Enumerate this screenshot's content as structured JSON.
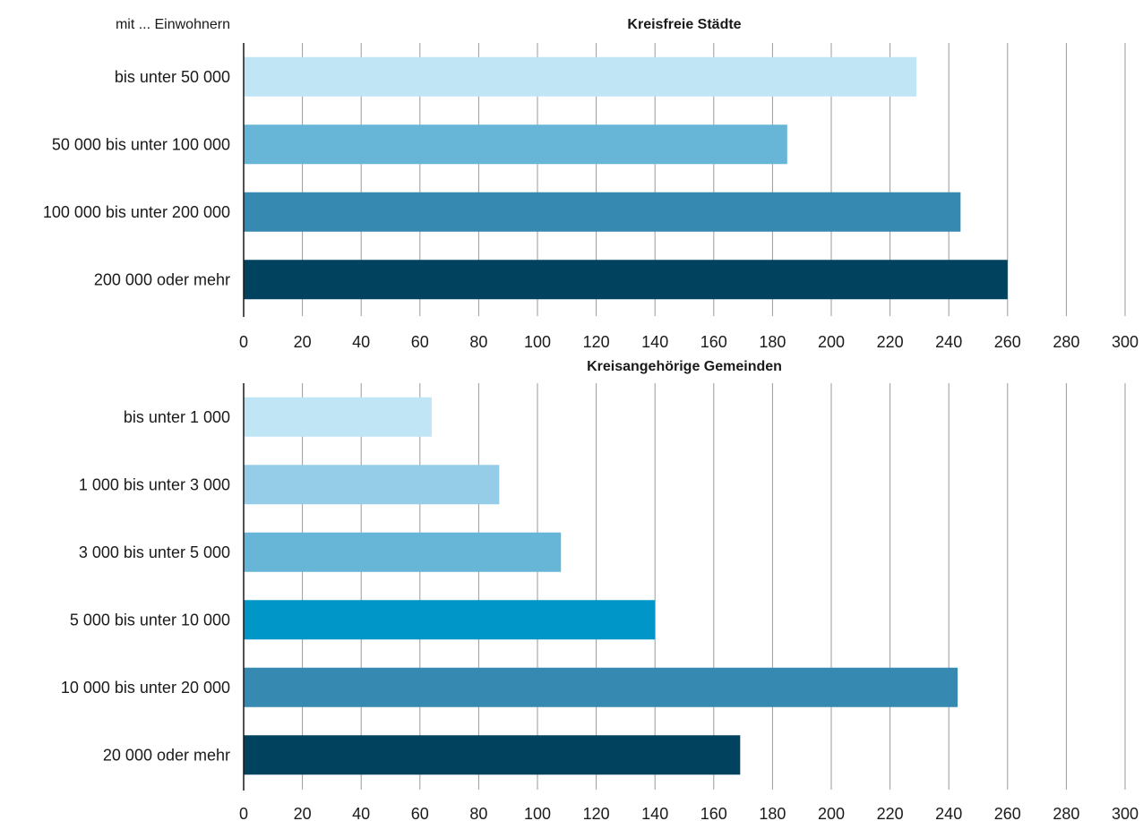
{
  "header": {
    "y_group_label": "mit ... Einwohnern"
  },
  "chart_data": [
    {
      "type": "bar",
      "orientation": "horizontal",
      "title": "Kreisfreie Städte",
      "categories": [
        "bis unter 50 000",
        "50 000 bis unter 100 000",
        "100 000 bis unter 200 000",
        "200 000 oder mehr"
      ],
      "values": [
        229,
        185,
        244,
        260
      ],
      "colors": [
        "#c0e6f5",
        "#67b6d7",
        "#3689b1",
        "#01425f"
      ],
      "xlim": [
        0,
        300
      ],
      "xticks": [
        "0",
        "20",
        "40",
        "60",
        "80",
        "100",
        "120",
        "140",
        "160",
        "180",
        "200",
        "220",
        "240",
        "260",
        "280",
        "300"
      ],
      "grid": "vertical"
    },
    {
      "type": "bar",
      "orientation": "horizontal",
      "title": "Kreisangehörige Gemeinden",
      "categories": [
        "bis unter 1 000",
        "1 000 bis unter 3 000",
        "3 000 bis unter 5 000",
        "5 000 bis unter 10 000",
        "10 000 bis unter 20 000",
        "20 000 oder mehr"
      ],
      "values": [
        64,
        87,
        108,
        140,
        243,
        169
      ],
      "colors": [
        "#c0e6f5",
        "#95cde8",
        "#67b6d7",
        "#0096c8",
        "#3689b1",
        "#01425f"
      ],
      "xlim": [
        0,
        300
      ],
      "xticks": [
        "0",
        "20",
        "40",
        "60",
        "80",
        "100",
        "120",
        "140",
        "160",
        "180",
        "200",
        "220",
        "240",
        "260",
        "280",
        "300"
      ],
      "grid": "vertical"
    }
  ]
}
